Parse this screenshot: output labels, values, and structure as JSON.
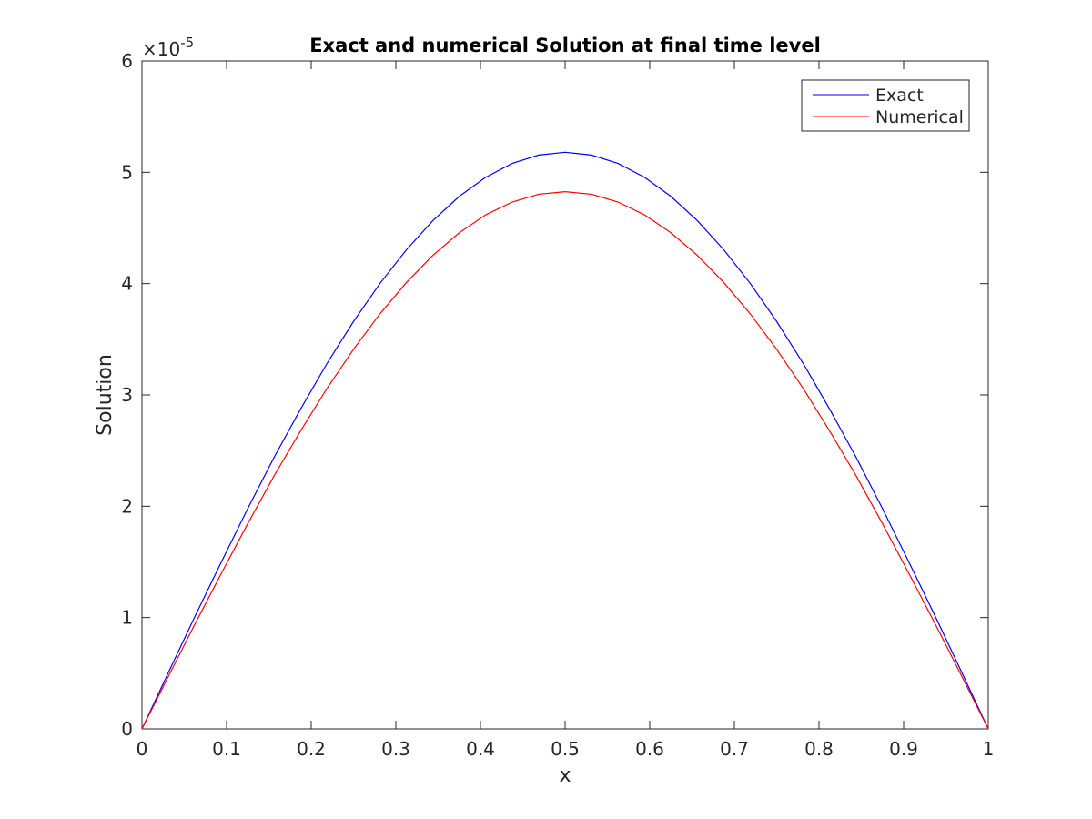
{
  "chart_data": {
    "type": "line",
    "title": "Exact and numerical Solution at final time level",
    "xlabel": "x",
    "ylabel": "Solution",
    "xlim": [
      0,
      1
    ],
    "ylim": [
      0,
      6e-05
    ],
    "y_exponent_label": "×10",
    "y_exponent_value": "-5",
    "x_ticks": [
      0,
      0.1,
      0.2,
      0.3,
      0.4,
      0.5,
      0.6,
      0.7,
      0.8,
      0.9,
      1
    ],
    "x_tick_labels": [
      "0",
      "0.1",
      "0.2",
      "0.3",
      "0.4",
      "0.5",
      "0.6",
      "0.7",
      "0.8",
      "0.9",
      "1"
    ],
    "y_ticks": [
      0,
      1e-05,
      2e-05,
      3e-05,
      4e-05,
      5e-05,
      6e-05
    ],
    "y_tick_labels": [
      "0",
      "1",
      "2",
      "3",
      "4",
      "5",
      "6"
    ],
    "grid": false,
    "legend_position": "top-right",
    "x": [
      0,
      0.03125,
      0.0625,
      0.09375,
      0.125,
      0.15625,
      0.1875,
      0.21875,
      0.25,
      0.28125,
      0.3125,
      0.34375,
      0.375,
      0.40625,
      0.4375,
      0.46875,
      0.5,
      0.53125,
      0.5625,
      0.59375,
      0.625,
      0.65625,
      0.6875,
      0.71875,
      0.75,
      0.78125,
      0.8125,
      0.84375,
      0.875,
      0.90625,
      0.9375,
      0.96875,
      1
    ],
    "series": [
      {
        "name": "Exact",
        "color": "#0000ff",
        "values": [
          0,
          5.07e-06,
          1.009e-05,
          1.498e-05,
          1.979e-05,
          2.441e-05,
          2.874e-05,
          3.284e-05,
          3.66e-05,
          4.002e-05,
          4.304e-05,
          4.566e-05,
          4.784e-05,
          4.956e-05,
          5.08e-05,
          5.155e-05,
          5.18e-05,
          5.155e-05,
          5.08e-05,
          4.956e-05,
          4.784e-05,
          4.566e-05,
          4.304e-05,
          4.002e-05,
          3.66e-05,
          3.284e-05,
          2.874e-05,
          2.441e-05,
          1.979e-05,
          1.498e-05,
          1.009e-05,
          5.07e-06,
          0
        ]
      },
      {
        "name": "Numerical",
        "color": "#ff0000",
        "values": [
          0,
          4.72e-06,
          9.4e-06,
          1.396e-05,
          1.844e-05,
          2.275e-05,
          2.678e-05,
          3.06e-05,
          3.41e-05,
          3.729e-05,
          4.01e-05,
          4.254e-05,
          4.457e-05,
          4.618e-05,
          4.733e-05,
          4.803e-05,
          4.826e-05,
          4.803e-05,
          4.733e-05,
          4.618e-05,
          4.457e-05,
          4.254e-05,
          4.01e-05,
          3.729e-05,
          3.41e-05,
          3.06e-05,
          2.678e-05,
          2.275e-05,
          1.844e-05,
          1.396e-05,
          9.4e-06,
          4.72e-06,
          0
        ]
      }
    ]
  }
}
